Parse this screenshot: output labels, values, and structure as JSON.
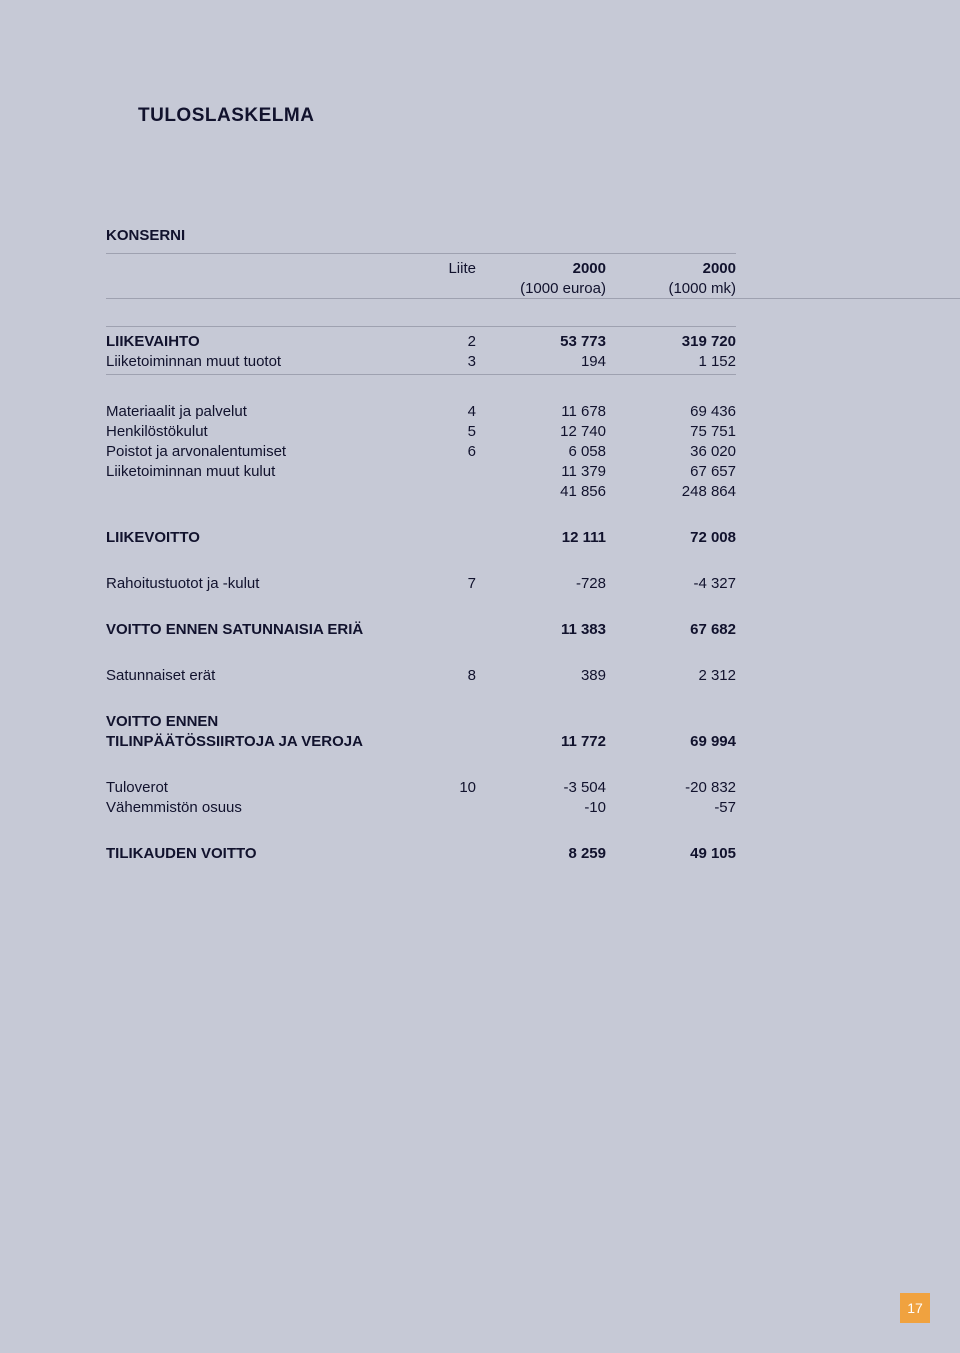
{
  "page": {
    "background_color": "#c6c9d6",
    "text_color": "#11122d",
    "pagenum_bg": "#f0a23f",
    "pagenum_fg": "#ffffff",
    "rule_color": "#9ea1b0"
  },
  "title": "TULOSLASKELMA",
  "subheading": "KONSERNI",
  "header": {
    "note_label": "Liite",
    "year_eur": "2000",
    "year_mk": "2000",
    "unit_eur": "(1000 euroa)",
    "unit_mk": "(1000 mk)"
  },
  "section1": {
    "rows": [
      {
        "label": "LIIKEVAIHTO",
        "note": "2",
        "eur": "53 773",
        "mk": "319 720",
        "bold": true
      },
      {
        "label": "Liiketoiminnan muut tuotot",
        "note": "3",
        "eur": "194",
        "mk": "1 152",
        "bold": false
      }
    ]
  },
  "section2": {
    "rows": [
      {
        "label": "Materiaalit ja palvelut",
        "note": "4",
        "eur": "11 678",
        "mk": "69 436"
      },
      {
        "label": "Henkilöstökulut",
        "note": "5",
        "eur": "12 740",
        "mk": "75 751"
      },
      {
        "label": "Poistot ja arvonalentumiset",
        "note": "6",
        "eur": "6 058",
        "mk": "36 020"
      },
      {
        "label": "Liiketoiminnan muut kulut",
        "note": "",
        "eur": "11 379",
        "mk": "67 657"
      },
      {
        "label": "",
        "note": "",
        "eur": "41 856",
        "mk": "248 864"
      },
      {
        "spacer": true
      },
      {
        "label": "LIIKEVOITTO",
        "note": "",
        "eur": "12 111",
        "mk": "72 008",
        "bold": true
      },
      {
        "spacer": true
      },
      {
        "label": "Rahoitustuotot ja -kulut",
        "note": "7",
        "eur": "-728",
        "mk": "-4 327"
      },
      {
        "spacer": true
      },
      {
        "label": "VOITTO ENNEN SATUNNAISIA ERIÄ",
        "note": "",
        "eur": "11 383",
        "mk": "67 682",
        "bold": true
      },
      {
        "spacer": true
      },
      {
        "label": "Satunnaiset erät",
        "note": "8",
        "eur": "389",
        "mk": "2 312"
      },
      {
        "spacer": true
      },
      {
        "label": "VOITTO ENNEN",
        "note": "",
        "eur": "",
        "mk": "",
        "bold": true
      },
      {
        "label": "TILINPÄÄTÖSSIIRTOJA JA VEROJA",
        "note": "",
        "eur": "11 772",
        "mk": "69 994",
        "bold": true
      },
      {
        "spacer": true
      },
      {
        "label": "Tuloverot",
        "note": "10",
        "eur": "-3 504",
        "mk": "-20 832"
      },
      {
        "label": "Vähemmistön osuus",
        "note": "",
        "eur": "-10",
        "mk": "-57"
      },
      {
        "spacer": true
      },
      {
        "label": "TILIKAUDEN VOITTO",
        "note": "",
        "eur": "8 259",
        "mk": "49 105",
        "bold": true
      }
    ]
  },
  "page_number": "17"
}
